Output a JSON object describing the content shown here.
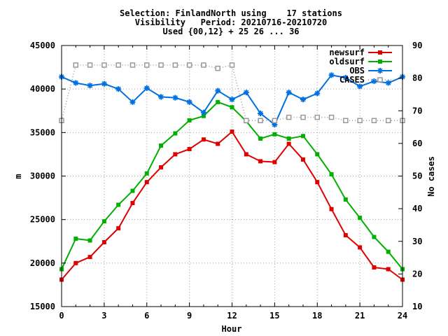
{
  "chart_data": {
    "type": "line",
    "title_lines": [
      "Selection: FinlandNorth using    17 stations",
      "Visibility   Period: 20210716-20210720",
      "Used {00,12} + 25 26 ... 36"
    ],
    "xlabel": "Hour",
    "ylabel": "m",
    "y2label": "No cases",
    "xlim": [
      0,
      24
    ],
    "ylim": [
      15000,
      45000
    ],
    "y2lim": [
      10,
      90
    ],
    "xticks": [
      "0",
      "3",
      "6",
      "9",
      "12",
      "15",
      "18",
      "21",
      "24"
    ],
    "yticks": [
      "15000",
      "20000",
      "25000",
      "30000",
      "35000",
      "40000",
      "45000"
    ],
    "y2ticks": [
      "10",
      "20",
      "30",
      "40",
      "50",
      "60",
      "70",
      "80",
      "90"
    ],
    "grid": true,
    "legend_position": "top-right",
    "x": [
      0,
      1,
      2,
      3,
      4,
      5,
      6,
      7,
      8,
      9,
      10,
      11,
      12,
      13,
      14,
      15,
      16,
      17,
      18,
      19,
      20,
      21,
      22,
      23,
      24
    ],
    "series": [
      {
        "name": "newsurf",
        "color": "#e00000",
        "axis": "left",
        "style": "line-square",
        "values": [
          18100,
          20000,
          20700,
          22400,
          24000,
          26900,
          29300,
          31000,
          32500,
          33100,
          34200,
          33700,
          35100,
          32500,
          31700,
          31600,
          33700,
          31900,
          29300,
          26200,
          23200,
          21800,
          19500,
          19300,
          18100
        ]
      },
      {
        "name": "oldsurf",
        "color": "#00b000",
        "axis": "left",
        "style": "line-square",
        "values": [
          19300,
          22800,
          22600,
          24800,
          26700,
          28300,
          30300,
          33500,
          34900,
          36400,
          36900,
          38500,
          37900,
          36300,
          34300,
          34800,
          34300,
          34600,
          32500,
          30200,
          27300,
          25200,
          23000,
          21300,
          19300
        ]
      },
      {
        "name": "OBS",
        "color": "#0070e0",
        "axis": "left",
        "style": "line-star",
        "values": [
          41400,
          40700,
          40400,
          40600,
          40000,
          38500,
          40100,
          39100,
          39000,
          38500,
          37300,
          39800,
          38800,
          39600,
          37200,
          35900,
          39600,
          38800,
          39500,
          41600,
          41300,
          40300,
          40900,
          40700,
          41400
        ]
      },
      {
        "name": "CASES",
        "color": "#999999",
        "axis": "right",
        "style": "dotted-open-square",
        "values": [
          67,
          84,
          84,
          84,
          84,
          84,
          84,
          84,
          84,
          84,
          84,
          83,
          84,
          67,
          67,
          67,
          68,
          68,
          68,
          68,
          67,
          67,
          67,
          67,
          67
        ]
      }
    ]
  }
}
